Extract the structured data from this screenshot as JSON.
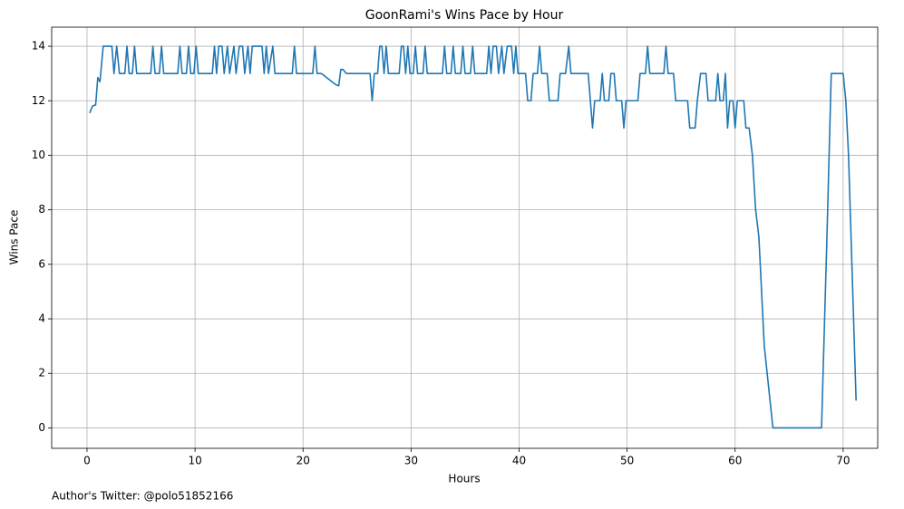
{
  "chart_data": {
    "type": "line",
    "title": "GoonRami's Wins Pace by Hour",
    "x_label": "Hours",
    "y_label": "Wins Pace",
    "annotation": "Author's Twitter: @polo51852166",
    "color": "#1f77b4",
    "grid": true,
    "xlim": [
      -3.27,
      73.2
    ],
    "ylim": [
      -0.75,
      14.7
    ],
    "xticks": [
      0,
      10,
      20,
      30,
      40,
      50,
      60,
      70
    ],
    "yticks": [
      0,
      2,
      4,
      6,
      8,
      10,
      12,
      14
    ],
    "x": [
      0.25,
      0.5,
      0.8,
      1.0,
      1.2,
      1.5,
      2.3,
      2.5,
      2.75,
      3.0,
      3.5,
      3.7,
      3.9,
      4.2,
      4.4,
      4.6,
      5.9,
      6.1,
      6.3,
      6.7,
      6.9,
      7.1,
      8.4,
      8.6,
      8.8,
      9.2,
      9.4,
      9.6,
      9.9,
      10.1,
      10.3,
      11.6,
      11.8,
      12.0,
      12.2,
      12.5,
      12.7,
      13.0,
      13.2,
      13.6,
      13.8,
      14.1,
      14.4,
      14.6,
      14.9,
      15.1,
      15.3,
      16.2,
      16.4,
      16.6,
      16.8,
      17.2,
      17.4,
      19.0,
      19.2,
      19.4,
      20.9,
      21.1,
      21.3,
      21.7,
      23.0,
      23.3,
      23.5,
      23.7,
      24.0,
      26.2,
      26.4,
      26.6,
      26.9,
      27.1,
      27.3,
      27.5,
      27.7,
      27.9,
      28.9,
      29.1,
      29.3,
      29.5,
      29.7,
      29.9,
      30.2,
      30.4,
      30.6,
      31.1,
      31.3,
      31.5,
      32.9,
      33.1,
      33.3,
      33.7,
      33.9,
      34.1,
      34.6,
      34.8,
      35.0,
      35.5,
      35.7,
      35.9,
      37.0,
      37.2,
      37.4,
      37.6,
      37.9,
      38.1,
      38.4,
      38.6,
      38.9,
      39.3,
      39.5,
      39.7,
      39.9,
      40.6,
      40.8,
      41.1,
      41.3,
      41.7,
      41.9,
      42.1,
      42.6,
      42.8,
      43.6,
      43.8,
      44.3,
      44.6,
      44.8,
      46.4,
      46.6,
      46.8,
      47.0,
      47.5,
      47.7,
      47.9,
      48.3,
      48.5,
      48.8,
      49.0,
      49.5,
      49.7,
      49.9,
      51.0,
      51.2,
      51.7,
      51.9,
      52.1,
      53.4,
      53.6,
      53.8,
      54.3,
      54.5,
      55.6,
      55.8,
      56.3,
      56.5,
      56.8,
      57.3,
      57.5,
      58.2,
      58.4,
      58.6,
      58.9,
      59.1,
      59.3,
      59.5,
      59.8,
      60.0,
      60.2,
      60.8,
      61.0,
      61.3,
      61.6,
      61.9,
      62.2,
      62.7,
      63.5,
      68.0,
      68.5,
      68.9,
      70.0,
      70.25,
      70.5,
      71.2
    ],
    "values": [
      11.55,
      11.8,
      11.85,
      12.85,
      12.7,
      14,
      14,
      13,
      14,
      13,
      13,
      14,
      13,
      13,
      14,
      13,
      13,
      14,
      13,
      13,
      14,
      13,
      13,
      14,
      13,
      13,
      14,
      13,
      13,
      14,
      13,
      13,
      14,
      13,
      14,
      14,
      13,
      14,
      13,
      14,
      13,
      14,
      14,
      13,
      14,
      13,
      14,
      14,
      13,
      14,
      13,
      14,
      13,
      13,
      14,
      13,
      13,
      14,
      13,
      13,
      12.6,
      12.55,
      13.15,
      13.15,
      13,
      13,
      12,
      13,
      13,
      14,
      14,
      13,
      14,
      13,
      13,
      14,
      14,
      13,
      14,
      13,
      13,
      14,
      13,
      13,
      14,
      13,
      13,
      14,
      13,
      13,
      14,
      13,
      13,
      14,
      13,
      13,
      14,
      13,
      13,
      14,
      13,
      14,
      14,
      13,
      14,
      13,
      14,
      14,
      13,
      14,
      13,
      13,
      12,
      12,
      13,
      13,
      14,
      13,
      13,
      12,
      12,
      13,
      13,
      14,
      13,
      13,
      12,
      11,
      12,
      12,
      13,
      12,
      12,
      13,
      13,
      12,
      12,
      11,
      12,
      12,
      13,
      13,
      14,
      13,
      13,
      14,
      13,
      13,
      12,
      12,
      11,
      11,
      12,
      13,
      13,
      12,
      12,
      13,
      12,
      12,
      13,
      11,
      12,
      12,
      11,
      12,
      12,
      11,
      11,
      10,
      8,
      7,
      3,
      0,
      0,
      7,
      13,
      13,
      12,
      10,
      1
    ]
  }
}
